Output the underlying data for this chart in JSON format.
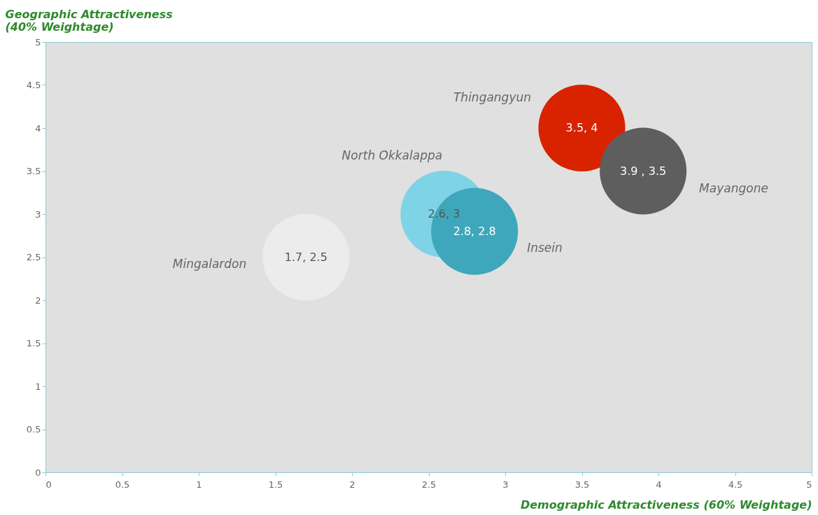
{
  "chart_data": {
    "type": "bubble",
    "xlabel": "Demographic Attractiveness (60% Weightage)",
    "ylabel": "Geographic Attractiveness\n(40% Weightage)",
    "xlim": [
      0,
      5
    ],
    "ylim": [
      0,
      5
    ],
    "xticks": [
      0,
      0.5,
      1,
      1.5,
      2,
      2.5,
      3,
      3.5,
      4,
      4.5,
      5
    ],
    "yticks": [
      0,
      0.5,
      1,
      1.5,
      2,
      2.5,
      3,
      3.5,
      4,
      4.5,
      5
    ],
    "grid": false,
    "legend": false,
    "series": [
      {
        "name": "Mingalardon",
        "color": "#ececec",
        "x": [
          1.7
        ],
        "values": [
          2.5
        ],
        "sizes": [
          1
        ],
        "value_labels": [
          "1.7, 2.5"
        ]
      },
      {
        "name": "North Okkalappa",
        "color": "#7fd3e6",
        "x": [
          2.6
        ],
        "values": [
          3
        ],
        "sizes": [
          1
        ],
        "value_labels": [
          "2.6, 3"
        ]
      },
      {
        "name": "Insein",
        "color": "#3fa7bb",
        "x": [
          2.8
        ],
        "values": [
          2.8
        ],
        "sizes": [
          1
        ],
        "value_labels": [
          "2.8, 2.8"
        ]
      },
      {
        "name": "Thingangyun",
        "color": "#d92200",
        "x": [
          3.5
        ],
        "values": [
          4
        ],
        "sizes": [
          1
        ],
        "value_labels": [
          "3.5, 4"
        ]
      },
      {
        "name": "Mayangone",
        "color": "#5e5e5e",
        "x": [
          3.9
        ],
        "values": [
          3.5
        ],
        "sizes": [
          1
        ],
        "value_labels": [
          "3.9 ,  3.5"
        ]
      }
    ]
  }
}
